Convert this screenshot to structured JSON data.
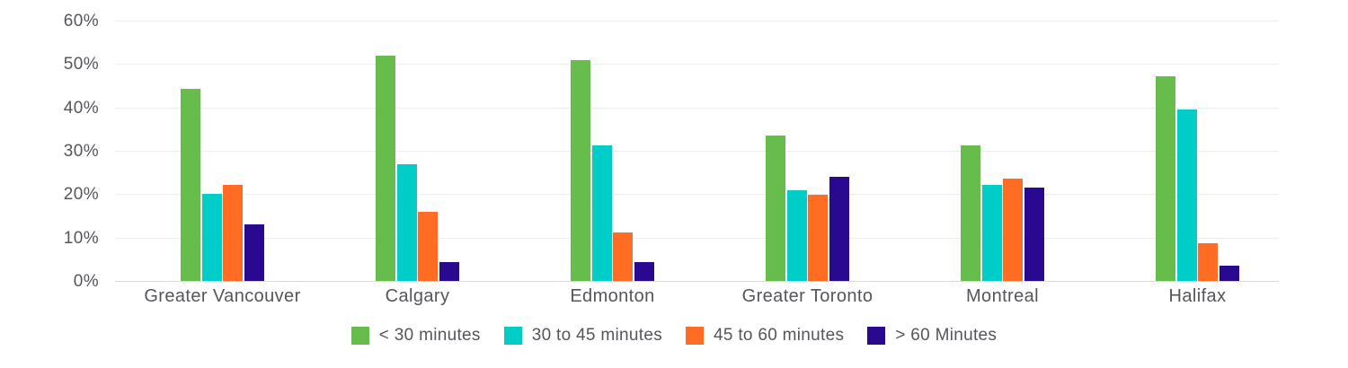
{
  "chart_data": {
    "type": "bar",
    "title": "",
    "xlabel": "",
    "ylabel": "",
    "categories": [
      "Greater Vancouver",
      "Calgary",
      "Edmonton",
      "Greater Toronto",
      "Montreal",
      "Halifax"
    ],
    "series": [
      {
        "name": "< 30 minutes",
        "color": "#66BD4B",
        "values": [
          44.2,
          52.0,
          51.0,
          33.5,
          31.3,
          47.2
        ]
      },
      {
        "name": "30 to 45 minutes",
        "color": "#00CDC8",
        "values": [
          20.0,
          26.8,
          31.3,
          21.0,
          22.2,
          39.5
        ]
      },
      {
        "name": "45 to 60 minutes",
        "color": "#FF6C22",
        "values": [
          22.2,
          16.0,
          11.2,
          19.8,
          23.5,
          8.7
        ]
      },
      {
        "name": "> 60 Minutes",
        "color": "#280990",
        "values": [
          13.0,
          4.3,
          4.3,
          24.0,
          21.5,
          3.5
        ]
      }
    ],
    "ylim": [
      0,
      60
    ],
    "ytick_step": 10,
    "ytick_labels": [
      "0%",
      "10%",
      "20%",
      "30%",
      "40%",
      "50%",
      "60%"
    ],
    "grid": true,
    "legend_position": "bottom"
  },
  "colors": {
    "background": "#FFFFFF",
    "gridline": "#ECECEC",
    "axis_line": "#D9D9D9",
    "text": "#54565A"
  }
}
